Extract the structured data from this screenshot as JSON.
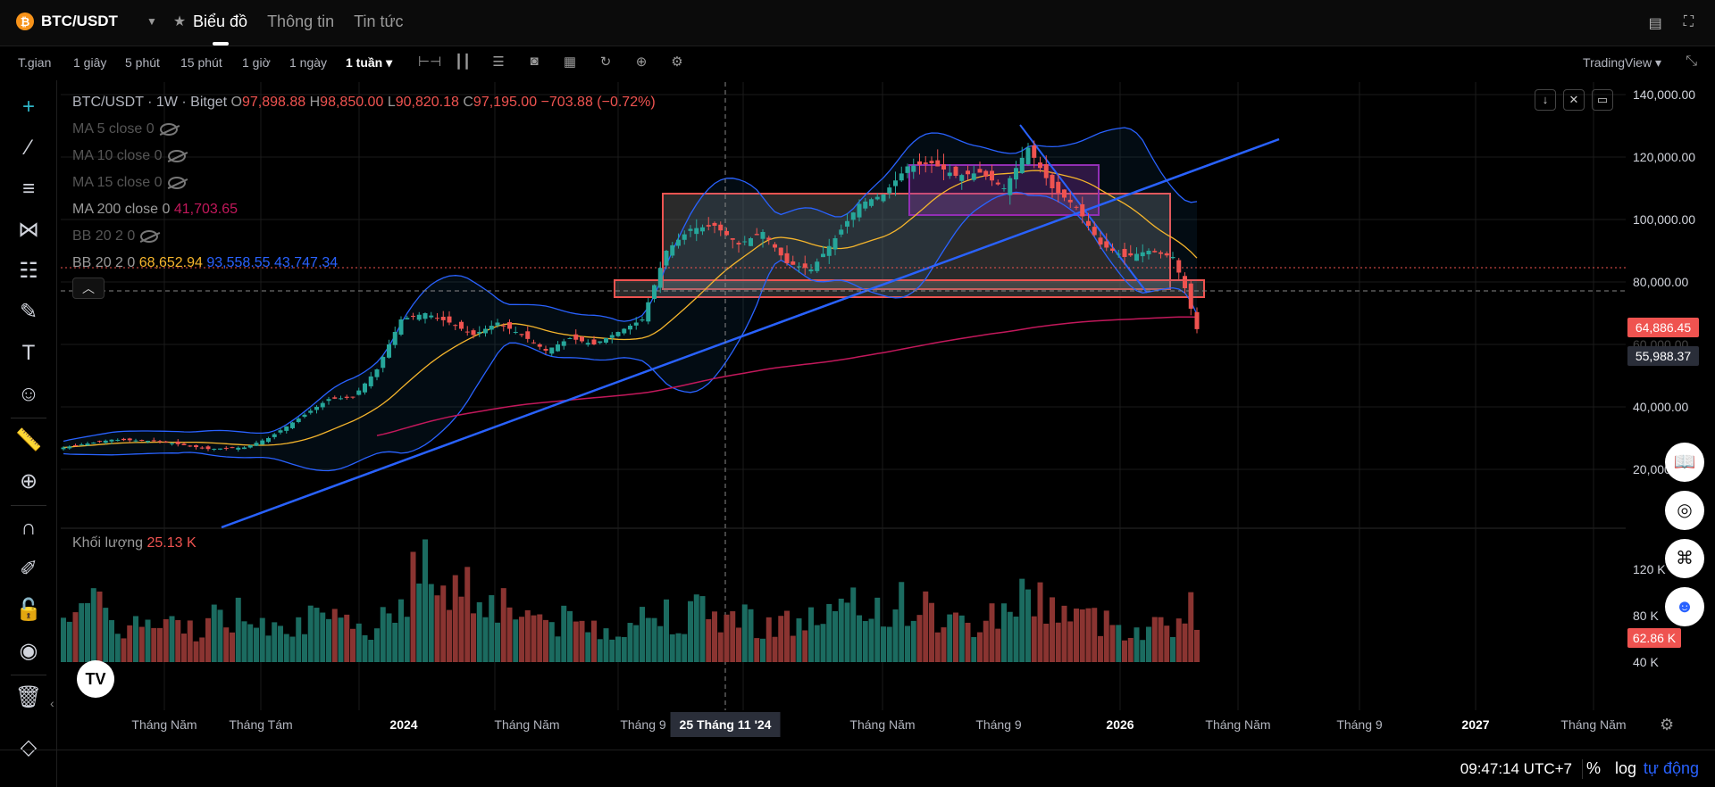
{
  "header": {
    "symbol": "BTC/USDT",
    "coin_glyph": "₿",
    "tabs": [
      {
        "label": "Biểu đồ",
        "active": true
      },
      {
        "label": "Thông tin",
        "active": false
      },
      {
        "label": "Tin tức",
        "active": false
      }
    ]
  },
  "toolbar": {
    "timeframes": [
      "T.gian",
      "1 giây",
      "5 phút",
      "15 phút",
      "1 giờ",
      "1 ngày",
      "1 tuần ▾"
    ],
    "active_timeframe": "1 tuần ▾",
    "provider": "TradingView ▾"
  },
  "legend": {
    "title": "BTC/USDT · 1W · Bitget",
    "o_label": "O",
    "o": "97,898.88",
    "h_label": "H",
    "h": "98,850.00",
    "l_label": "L",
    "l": "90,820.18",
    "c_label": "C",
    "c": "97,195.00",
    "change": "−703.88 (−0.72%)",
    "ma5": "MA 5 close 0",
    "ma10": "MA 10 close 0",
    "ma15": "MA 15 close 0",
    "ma200": "MA 200 close 0",
    "ma200_value": "41,703.65",
    "bb_hidden": "BB 20 2 0",
    "bb": "BB 20 2 0",
    "bb_mid": "68,652.94",
    "bb_upper": "93,558.55",
    "bb_lower": "43,747.34"
  },
  "volume": {
    "label": "Khối lượng",
    "value": "25.13 K",
    "badge": "62.86 K"
  },
  "price_axis": {
    "labels": [
      "140,000.00",
      "120,000.00",
      "100,000.00",
      "80,000.00",
      "60,000.00",
      "40,000.00",
      "20,000.00"
    ],
    "last_price": "64,886.45",
    "crosshair_price": "55,988.37",
    "volume_labels": [
      "120 K",
      "80 K",
      "40 K"
    ]
  },
  "time_axis": {
    "labels": [
      "Tháng Năm",
      "Tháng Tám",
      "2024",
      "Tháng Năm",
      "Tháng 9",
      "Tháng Năm",
      "Tháng 9",
      "2026",
      "Tháng Năm",
      "Tháng 9",
      "2027",
      "Tháng Năm"
    ],
    "crosshair_date": "25 Tháng 11 '24"
  },
  "status_bar": {
    "time": "09:47:14 UTC+7",
    "percent": "%",
    "log": "log",
    "auto": "tự động"
  },
  "colors": {
    "up": "#26a69a",
    "down": "#ef5350",
    "bb": "#2962ff",
    "bb_mid": "#f5b52c",
    "ma200": "#c2185b",
    "trendline": "#2962ff"
  },
  "chart_data": {
    "type": "candlestick",
    "title": "BTC/USDT · 1W · Bitget",
    "ylim": [
      0,
      140000
    ],
    "close_path": [
      [
        0,
        27000
      ],
      [
        8,
        29500
      ],
      [
        16,
        29000
      ],
      [
        24,
        26500
      ],
      [
        30,
        27000
      ],
      [
        34,
        30000
      ],
      [
        38,
        35000
      ],
      [
        40,
        37500
      ],
      [
        44,
        42500
      ],
      [
        48,
        43000
      ],
      [
        52,
        52000
      ],
      [
        56,
        68000
      ],
      [
        60,
        70000
      ],
      [
        64,
        67000
      ],
      [
        68,
        63000
      ],
      [
        72,
        67000
      ],
      [
        76,
        63000
      ],
      [
        80,
        58000
      ],
      [
        84,
        62000
      ],
      [
        88,
        60000
      ],
      [
        92,
        64000
      ],
      [
        96,
        68000
      ],
      [
        100,
        90000
      ],
      [
        104,
        97000
      ],
      [
        108,
        98000
      ],
      [
        112,
        92000
      ],
      [
        116,
        96000
      ],
      [
        120,
        86000
      ],
      [
        124,
        84000
      ],
      [
        128,
        94000
      ],
      [
        132,
        105000
      ],
      [
        136,
        108000
      ],
      [
        140,
        117000
      ],
      [
        144,
        118000
      ],
      [
        148,
        114000
      ],
      [
        152,
        115000
      ],
      [
        156,
        110000
      ],
      [
        160,
        123000
      ],
      [
        164,
        110000
      ],
      [
        168,
        104000
      ],
      [
        172,
        92000
      ],
      [
        176,
        88000
      ],
      [
        180,
        90000
      ],
      [
        184,
        88000
      ],
      [
        186,
        78000
      ],
      [
        188,
        64886
      ]
    ],
    "volume_path": [
      [
        0,
        80000
      ],
      [
        10,
        45000
      ],
      [
        20,
        40000
      ],
      [
        30,
        60000
      ],
      [
        40,
        50000
      ],
      [
        50,
        38000
      ],
      [
        60,
        110000
      ],
      [
        70,
        80000
      ],
      [
        80,
        50000
      ],
      [
        90,
        40000
      ],
      [
        100,
        60000
      ],
      [
        110,
        55000
      ],
      [
        120,
        45000
      ],
      [
        130,
        60000
      ],
      [
        140,
        70000
      ],
      [
        150,
        40000
      ],
      [
        160,
        80000
      ],
      [
        170,
        50000
      ],
      [
        180,
        40000
      ],
      [
        188,
        62860
      ]
    ]
  }
}
